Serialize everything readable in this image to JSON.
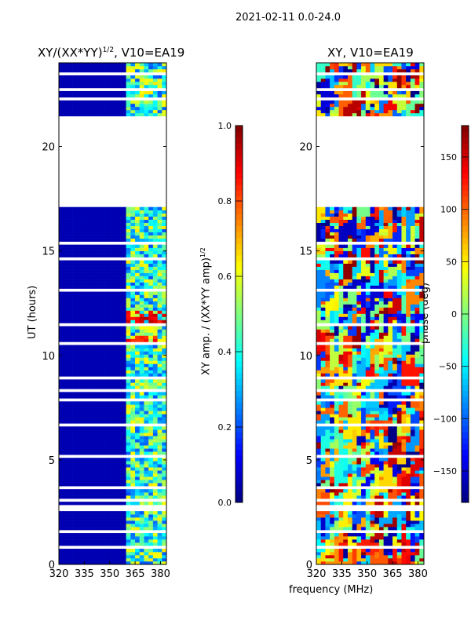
{
  "suptitle": "2021-02-11 0.0-24.0",
  "xlabel": "frequency (MHz)",
  "chart_data": [
    {
      "type": "heatmap",
      "title": "XY/(XX*YY)",
      "title_sup": "1/2",
      "title_suffix": ", V10=EA19",
      "ylabel": "UT (hours)",
      "xlim": [
        320,
        383.5
      ],
      "ylim": [
        0,
        24
      ],
      "xticks": [
        "320",
        "335",
        "350",
        "365",
        "380"
      ],
      "yticks": [
        "0",
        "5",
        "10",
        "15",
        "20"
      ],
      "xtick_values": [
        320,
        335,
        350,
        365,
        380
      ],
      "ytick_values": [
        0,
        5,
        10,
        15,
        20
      ],
      "colorbar": {
        "label": "XY amp. / (XX*YY amp)",
        "label_sup": "1/2",
        "range": [
          0,
          1
        ],
        "ticks": [
          "0.0",
          "0.2",
          "0.4",
          "0.6",
          "0.8",
          "1.0"
        ],
        "tick_values": [
          0,
          0.2,
          0.4,
          0.6,
          0.8,
          1.0
        ]
      },
      "background_value": 0.05,
      "active_band_mhz": [
        361,
        383
      ],
      "active_value_range": [
        0.2,
        0.7
      ],
      "hot_patches": [
        {
          "hours": [
            11.6,
            12.1
          ],
          "mhz": [
            361,
            383
          ],
          "value": 0.85
        },
        {
          "hours": [
            10.6,
            10.9
          ],
          "mhz": [
            361,
            377
          ],
          "value": 0.8
        }
      ]
    },
    {
      "type": "heatmap",
      "title": "XY",
      "title_sup": "",
      "title_suffix": ", V10=EA19",
      "xlim": [
        320,
        383.5
      ],
      "ylim": [
        0,
        24
      ],
      "xticks": [
        "320",
        "335",
        "350",
        "365",
        "380"
      ],
      "yticks": [
        "0",
        "5",
        "10",
        "15",
        "20"
      ],
      "xtick_values": [
        320,
        335,
        350,
        365,
        380
      ],
      "ytick_values": [
        0,
        5,
        10,
        15,
        20
      ],
      "colorbar": {
        "label": "phase (deg)",
        "range": [
          -180,
          180
        ],
        "ticks": [
          "150",
          "100",
          "50",
          "0",
          "−50",
          "−100",
          "−150"
        ],
        "tick_values": [
          150,
          100,
          50,
          0,
          -50,
          -100,
          -150
        ]
      }
    }
  ],
  "shared": {
    "gaps_hours": [
      [
        17.1,
        21.4
      ],
      [
        0.8,
        0.9
      ],
      [
        1.5,
        1.6
      ],
      [
        2.6,
        2.8
      ],
      [
        3.0,
        3.1
      ],
      [
        3.6,
        3.7
      ],
      [
        5.1,
        5.2
      ],
      [
        6.6,
        6.7
      ],
      [
        7.3,
        7.4
      ],
      [
        7.8,
        7.9
      ],
      [
        8.3,
        8.4
      ],
      [
        8.9,
        9.0
      ],
      [
        9.7,
        9.8
      ],
      [
        10.5,
        10.6
      ],
      [
        11.4,
        11.6
      ],
      [
        12.4,
        12.5
      ],
      [
        13.0,
        13.2
      ],
      [
        14.6,
        14.7
      ],
      [
        15.3,
        15.4
      ],
      [
        15.7,
        15.8
      ],
      [
        16.3,
        16.4
      ],
      [
        22.2,
        22.3
      ],
      [
        22.6,
        22.8
      ],
      [
        23.4,
        23.6
      ]
    ]
  }
}
